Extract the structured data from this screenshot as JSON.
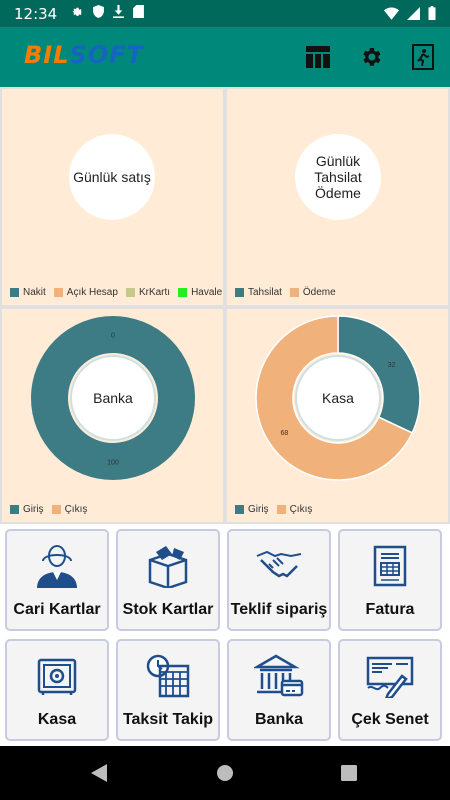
{
  "status_bar": {
    "time": "12:34"
  },
  "app_bar": {
    "logo_part1": "BIL",
    "logo_part2": "SOFT"
  },
  "panels": [
    {
      "center_label": "Günlük satış",
      "legend": [
        {
          "label": "Nakit",
          "color": "#3d7c84"
        },
        {
          "label": "Açık Hesap",
          "color": "#f0b27a"
        },
        {
          "label": "KrKartı",
          "color": "#c5c98a"
        },
        {
          "label": "Havale",
          "color": "#22ee22"
        }
      ]
    },
    {
      "center_label_lines": [
        "Günlük",
        "Tahsilat",
        "Ödeme"
      ],
      "legend": [
        {
          "label": "Tahsilat",
          "color": "#3d7c84"
        },
        {
          "label": "Ödeme",
          "color": "#f0b27a"
        }
      ]
    },
    {
      "center_label": "Banka",
      "legend": [
        {
          "label": "Giriş",
          "color": "#3d7c84"
        },
        {
          "label": "Çıkış",
          "color": "#f0b27a"
        }
      ]
    },
    {
      "center_label": "Kasa",
      "legend": [
        {
          "label": "Giriş",
          "color": "#3d7c84"
        },
        {
          "label": "Çıkış",
          "color": "#f0b27a"
        }
      ]
    }
  ],
  "chart_data": [
    {
      "type": "pie",
      "title": "Banka",
      "labels": [
        "Giriş",
        "Çıkış"
      ],
      "values": [
        100,
        0
      ],
      "colors": [
        "#3d7c84",
        "#f0b27a"
      ]
    },
    {
      "type": "pie",
      "title": "Kasa",
      "labels": [
        "Giriş",
        "Çıkış"
      ],
      "values": [
        32,
        68
      ],
      "colors": [
        "#3d7c84",
        "#f0b27a"
      ]
    }
  ],
  "tiles": [
    {
      "label": "Cari Kartlar",
      "icon": "person-icon"
    },
    {
      "label": "Stok Kartlar",
      "icon": "box-icon"
    },
    {
      "label": "Teklif sipariş",
      "icon": "handshake-icon"
    },
    {
      "label": "Fatura",
      "icon": "invoice-icon"
    },
    {
      "label": "Kasa",
      "icon": "safe-icon"
    },
    {
      "label": "Taksit Takip",
      "icon": "calendar-icon"
    },
    {
      "label": "Banka",
      "icon": "bank-icon"
    },
    {
      "label": "Çek Senet",
      "icon": "cheque-icon"
    }
  ]
}
